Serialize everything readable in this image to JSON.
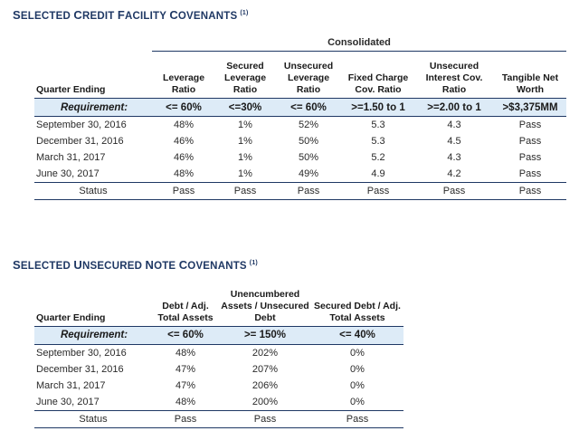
{
  "credit": {
    "title_first": "S",
    "title_rest": "ELECTED ",
    "title_words": [
      {
        "big": "S",
        "small": "ELECTED "
      },
      {
        "big": "C",
        "small": "REDIT "
      },
      {
        "big": "F",
        "small": "ACILITY "
      },
      {
        "big": "C",
        "small": "OVENANTS"
      }
    ],
    "footnote": "(1)",
    "group_header": "Consolidated",
    "row_header": "Quarter Ending",
    "columns": [
      "Leverage Ratio",
      "Secured Leverage Ratio",
      "Unsecured Leverage Ratio",
      "Fixed Charge Cov. Ratio",
      "Unsecured Interest Cov. Ratio",
      "Tangible Net Worth"
    ],
    "requirement_label": "Requirement:",
    "requirements": [
      "<= 60%",
      "<=30%",
      "<= 60%",
      ">=1.50 to 1",
      ">=2.00 to 1",
      ">$3,375MM"
    ],
    "rows": [
      {
        "label": "September 30, 2016",
        "values": [
          "48%",
          "1%",
          "52%",
          "5.3",
          "4.3",
          "Pass"
        ]
      },
      {
        "label": "December 31, 2016",
        "values": [
          "46%",
          "1%",
          "50%",
          "5.3",
          "4.5",
          "Pass"
        ]
      },
      {
        "label": "March 31, 2017",
        "values": [
          "46%",
          "1%",
          "50%",
          "5.2",
          "4.3",
          "Pass"
        ]
      },
      {
        "label": "June 30, 2017",
        "values": [
          "48%",
          "1%",
          "49%",
          "4.9",
          "4.2",
          "Pass"
        ]
      }
    ],
    "status_label": "Status",
    "status_values": [
      "Pass",
      "Pass",
      "Pass",
      "Pass",
      "Pass",
      "Pass"
    ]
  },
  "note": {
    "title_words": [
      {
        "big": "S",
        "small": "ELECTED "
      },
      {
        "big": "U",
        "small": "NSECURED "
      },
      {
        "big": "N",
        "small": "OTE "
      },
      {
        "big": "C",
        "small": "OVENANTS"
      }
    ],
    "footnote": "(1)",
    "row_header": "Quarter Ending",
    "columns": [
      "Debt / Adj. Total Assets",
      "Unencumbered Assets / Unsecured Debt",
      "Secured Debt / Adj. Total Assets"
    ],
    "requirement_label": "Requirement:",
    "requirements": [
      "<= 60%",
      ">= 150%",
      "<= 40%"
    ],
    "rows": [
      {
        "label": "September 30, 2016",
        "values": [
          "48%",
          "202%",
          "0%"
        ]
      },
      {
        "label": "December 31, 2016",
        "values": [
          "47%",
          "207%",
          "0%"
        ]
      },
      {
        "label": "March 31, 2017",
        "values": [
          "47%",
          "206%",
          "0%"
        ]
      },
      {
        "label": "June 30, 2017",
        "values": [
          "48%",
          "200%",
          "0%"
        ]
      }
    ],
    "status_label": "Status",
    "status_values": [
      "Pass",
      "Pass",
      "Pass"
    ]
  },
  "colors": {
    "title": "#1f3864",
    "rule": "#1f3864",
    "requirement_bg": "#ddebf7"
  }
}
